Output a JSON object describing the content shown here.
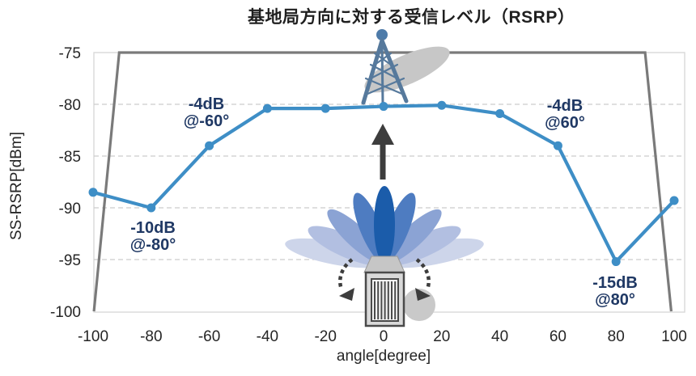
{
  "chart_data": {
    "type": "line",
    "title": "基地局方向に対する受信レベル（RSRP）",
    "xlabel": "angle[degree]",
    "ylabel": "SS-RSRP[dBm]",
    "xlim": [
      -100,
      100
    ],
    "ylim": [
      -100,
      -75
    ],
    "x_ticks": [
      "-100",
      "-80",
      "-60",
      "-40",
      "-20",
      "0",
      "20",
      "40",
      "60",
      "80",
      "100"
    ],
    "y_ticks": [
      "-75",
      "-80",
      "-85",
      "-90",
      "-95",
      "-100"
    ],
    "grid": "horizontal-dashed",
    "legend": "none",
    "series": [
      {
        "name": "measured-ss-rsrp",
        "type": "line",
        "color": "#3e8ec6",
        "marker": "circle",
        "x": [
          -100,
          -80,
          -60,
          -40,
          -20,
          0,
          20,
          40,
          60,
          80,
          100
        ],
        "values": [
          -88.5,
          -90,
          -84,
          -80.4,
          -80.4,
          -80.2,
          -80.1,
          -80.9,
          -84,
          -95.2,
          -89.3
        ]
      },
      {
        "name": "trapezoid-envelope",
        "type": "line",
        "color": "#7a7a7a",
        "marker": "none",
        "x": [
          -99.7,
          -91,
          90,
          99
        ],
        "values": [
          -100,
          -75,
          -75,
          -100
        ]
      }
    ],
    "annotations": [
      {
        "line1": "-4dB",
        "line2": "@-60°"
      },
      {
        "line1": "-4dB",
        "line2": "@60°"
      },
      {
        "line1": "-10dB",
        "line2": "@-80°"
      },
      {
        "line1": "-15dB",
        "line2": "@80°"
      }
    ],
    "annotation_color": "#1f3864"
  },
  "illustration": {
    "icons": [
      "base-station-tower-icon",
      "beam-ellipse-icon",
      "up-arrow-icon",
      "beam-lobes-icon",
      "antenna-device-icon",
      "pivot-circle-icon",
      "rotate-left-dashed-arrow-icon",
      "rotate-right-dashed-arrow-icon"
    ],
    "lobe_colors": [
      "#cdd5ea",
      "#b2bfe1",
      "#8ba3d4",
      "#4e7cc1",
      "#1b5caa"
    ],
    "tower_color": "#56799c",
    "gray": "#c7c7c7"
  }
}
